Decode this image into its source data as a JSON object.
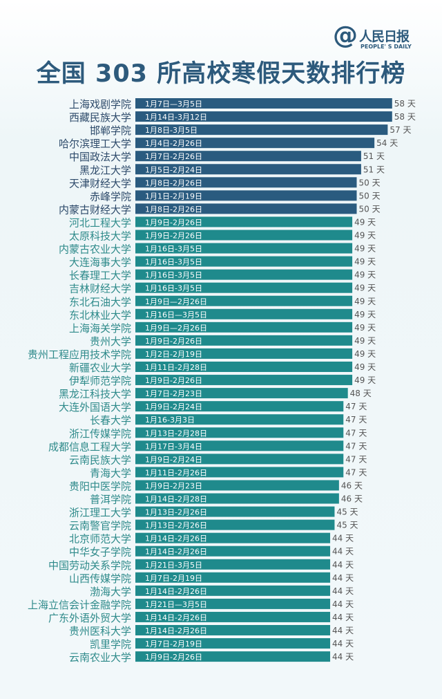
{
  "logo": {
    "at": "@",
    "cn": "人民日报",
    "en": "PEOPLE' S DAILY"
  },
  "colors": {
    "top": "#2a5b7f",
    "rest": "#1f8a8c",
    "top_name": "#2d4a6a",
    "rest_name": "#2e8a8a"
  },
  "chart_data": {
    "type": "bar",
    "orientation": "horizontal",
    "title": "全国 303 所高校寒假天数排行榜",
    "unit": "天",
    "categories": [
      "上海戏剧学院",
      "西藏民族大学",
      "邯郸学院",
      "哈尔滨理工大学",
      "中国政法大学",
      "黑龙江大学",
      "天津财经大学",
      "赤峰学院",
      "内蒙古财经大学",
      "河北工程大学",
      "太原科技大学",
      "内蒙古农业大学",
      "大连海事大学",
      "长春理工大学",
      "吉林财经大学",
      "东北石油大学",
      "东北林业大学",
      "上海海关学院",
      "贵州大学",
      "贵州工程应用技术学院",
      "新疆农业大学",
      "伊犁师范学院",
      "黑龙江科技大学",
      "大连外国语大学",
      "长春大学",
      "浙江传媒学院",
      "成都信息工程大学",
      "云南民族大学",
      "青海大学",
      "贵阳中医学院",
      "普洱学院",
      "浙江理工大学",
      "云南警官学院",
      "北京师范大学",
      "中华女子学院",
      "中国劳动关系学院",
      "山西传媒学院",
      "渤海大学",
      "上海立信会计金融学院",
      "广东外语外贸大学",
      "贵州医科大学",
      "凯里学院",
      "云南农业大学"
    ],
    "dates": [
      "1月7日—3月5日",
      "1月14日-3月12日",
      "1月8日-3月5日",
      "1月4日-2月26日",
      "1月7日-2月26日",
      "1月5日-2月24日",
      "1月8日-2月26日",
      "1月1日-2月19日",
      "1月8日-2月26日",
      "1月9日-2月26日",
      "1月9日-2月26日",
      "1月16日-3月5日",
      "1月16日-3月5日",
      "1月16日-3月5日",
      "1月16日-3月5日",
      "1月9日—2月26日",
      "1月16日—3月5日",
      "1月9日—2月26日",
      "1月9日-2月26日",
      "1月2日-2月19日",
      "1月11日-2月28日",
      "1月9日-2月26日",
      "1月7日-2月23日",
      "1月9日-2月24日",
      "1月16-3月3日",
      "1月13日-2月28日",
      "1月17日-3月4日",
      "1月9日-2月24日",
      "1月11日-2月26日",
      "1月9日-2月23日",
      "1月14日-2月28日",
      "1月13日-2月26日",
      "1月13日-2月26日",
      "1月14日-2月26日",
      "1月14日-2月26日",
      "1月21日-3月5日",
      "1月7日-2月19日",
      "1月14日-2月26日",
      "1月21日—3月5日",
      "1月14日-2月26日",
      "1月14日-2月26日",
      "1月7日-2月19日",
      "1月9日-2月26日"
    ],
    "values": [
      58,
      58,
      57,
      54,
      51,
      51,
      50,
      50,
      50,
      49,
      49,
      49,
      49,
      49,
      49,
      49,
      49,
      49,
      49,
      49,
      49,
      49,
      48,
      47,
      47,
      47,
      47,
      47,
      47,
      46,
      46,
      45,
      45,
      44,
      44,
      44,
      44,
      44,
      44,
      44,
      44,
      44,
      44
    ],
    "highlight_count": 9
  }
}
